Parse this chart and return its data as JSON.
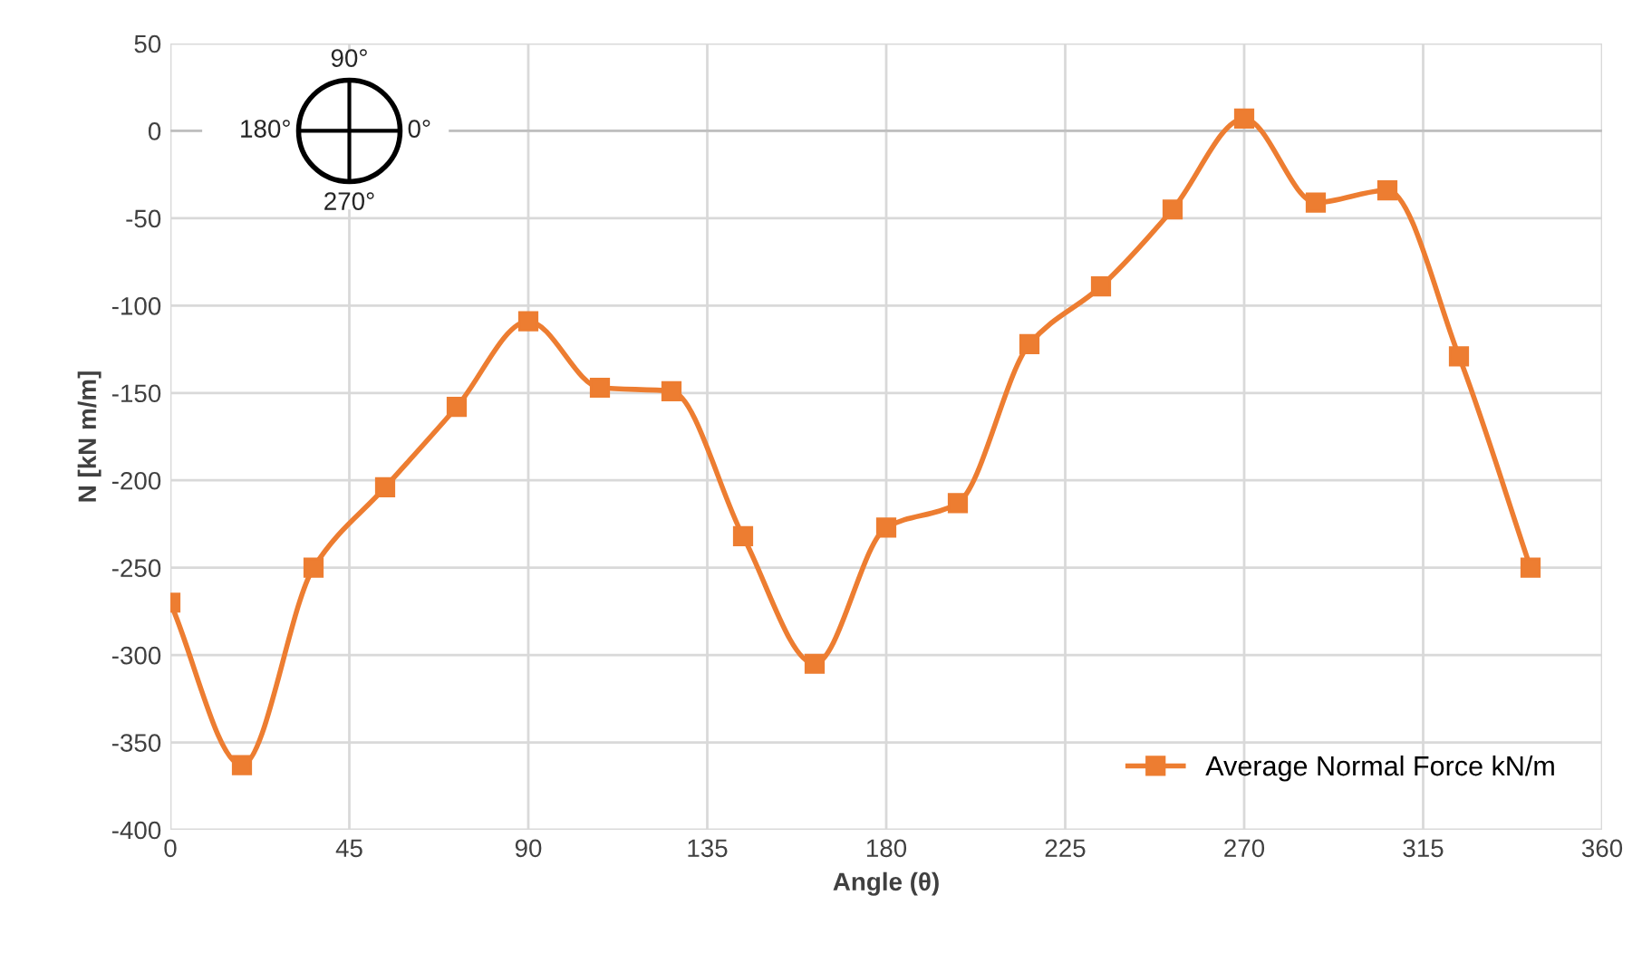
{
  "chart_data": {
    "type": "line",
    "xlabel": "Angle (θ)",
    "ylabel": "N [kN m/m]",
    "x": [
      0,
      18,
      36,
      54,
      72,
      90,
      108,
      126,
      144,
      162,
      180,
      198,
      216,
      234,
      252,
      270,
      288,
      306,
      324,
      342
    ],
    "series": [
      {
        "name": "Average Normal Force kN/m",
        "color": "#ed7d31",
        "values": [
          -270,
          -363,
          -250,
          -204,
          -158,
          -109,
          -147,
          -149,
          -232,
          -305,
          -227,
          -213,
          -122,
          -89,
          -45,
          7,
          -41,
          -34,
          -129,
          -250
        ]
      }
    ],
    "xlim": [
      0,
      360
    ],
    "xticks": [
      0,
      45,
      90,
      135,
      180,
      225,
      270,
      315,
      360
    ],
    "ylim": [
      -400,
      50
    ],
    "yticks": [
      -400,
      -350,
      -300,
      -250,
      -200,
      -150,
      -100,
      -50,
      0,
      50
    ],
    "grid": true,
    "legend": "bottom right",
    "marker": "square",
    "line_style": "solid",
    "annotations": [
      "90°",
      "180°",
      "0°",
      "270°"
    ]
  }
}
